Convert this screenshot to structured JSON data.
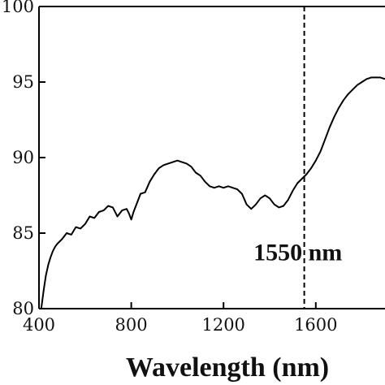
{
  "chart_data": {
    "type": "line",
    "title": "",
    "xlabel": "Wavelength (nm)",
    "ylabel": "",
    "xlim": [
      400,
      1900
    ],
    "ylim": [
      80,
      100
    ],
    "grid": false,
    "xticks": [
      400,
      800,
      1200,
      1600
    ],
    "xtick_labels": [
      "400",
      "800",
      "1200",
      "1600"
    ],
    "yticks": [
      80,
      85,
      90,
      95,
      100
    ],
    "ytick_labels": [
      "80",
      "85",
      "90",
      "95",
      "100"
    ],
    "series": [
      {
        "x": [
          410,
          420,
          430,
          440,
          450,
          460,
          470,
          480,
          500,
          520,
          540,
          560,
          580,
          600,
          620,
          640,
          660,
          680,
          700,
          720,
          740,
          760,
          780,
          790,
          800,
          810,
          820,
          840,
          860,
          880,
          900,
          920,
          940,
          960,
          980,
          1000,
          1020,
          1040,
          1060,
          1080,
          1100,
          1120,
          1140,
          1160,
          1180,
          1200,
          1220,
          1240,
          1260,
          1280,
          1300,
          1320,
          1340,
          1360,
          1380,
          1400,
          1420,
          1440,
          1460,
          1480,
          1500,
          1520,
          1540,
          1560,
          1580,
          1600,
          1620,
          1640,
          1660,
          1680,
          1700,
          1720,
          1740,
          1760,
          1780,
          1800,
          1820,
          1840,
          1860,
          1880,
          1900
        ],
        "y": [
          80.0,
          81.2,
          82.2,
          82.9,
          83.4,
          83.8,
          84.1,
          84.3,
          84.6,
          85.0,
          84.9,
          85.4,
          85.3,
          85.6,
          86.1,
          86.0,
          86.4,
          86.5,
          86.8,
          86.7,
          86.1,
          86.5,
          86.6,
          86.3,
          85.9,
          86.4,
          86.8,
          87.6,
          87.7,
          88.4,
          88.9,
          89.3,
          89.5,
          89.6,
          89.7,
          89.8,
          89.7,
          89.6,
          89.4,
          89.0,
          88.8,
          88.4,
          88.1,
          88.0,
          88.1,
          88.0,
          88.1,
          88.0,
          87.9,
          87.6,
          86.9,
          86.6,
          86.9,
          87.3,
          87.5,
          87.3,
          86.9,
          86.7,
          86.8,
          87.2,
          87.8,
          88.3,
          88.6,
          88.9,
          89.3,
          89.8,
          90.4,
          91.2,
          92.0,
          92.7,
          93.3,
          93.8,
          94.2,
          94.5,
          94.8,
          95.0,
          95.2,
          95.3,
          95.3,
          95.3,
          95.2
        ]
      }
    ],
    "annotations": [
      {
        "type": "vline",
        "x": 1550,
        "style": "dashed"
      },
      {
        "type": "text",
        "text": "1550 nm",
        "x": 1330,
        "y": 83.2
      }
    ]
  }
}
